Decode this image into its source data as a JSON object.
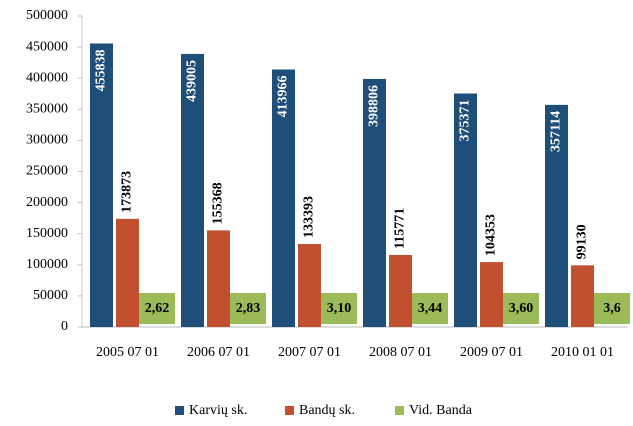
{
  "chart_data": {
    "type": "bar",
    "categories": [
      "2005 07 01",
      "2006 07 01",
      "2007 07 01",
      "2008 07 01",
      "2009 07 01",
      "2010 01 01"
    ],
    "series": [
      {
        "name": "Karvių sk.",
        "color": "#1f4e79",
        "values": [
          455838,
          439005,
          413966,
          398806,
          375371,
          357114
        ]
      },
      {
        "name": "Bandų sk.",
        "color": "#c0502f",
        "values": [
          173873,
          155368,
          133393,
          115771,
          104353,
          99130
        ]
      },
      {
        "name": "Vid. Banda",
        "color": "#9bbb59",
        "values": [
          2.62,
          2.83,
          3.1,
          3.44,
          3.6,
          3.6
        ],
        "value_labels": [
          "2,62",
          "2,83",
          "3,10",
          "3,44",
          "3,60",
          "3,6"
        ]
      }
    ],
    "ylim": [
      0,
      500000
    ],
    "yticks": [
      0,
      50000,
      100000,
      150000,
      200000,
      250000,
      300000,
      350000,
      400000,
      450000,
      500000
    ],
    "legend": "bottom"
  }
}
